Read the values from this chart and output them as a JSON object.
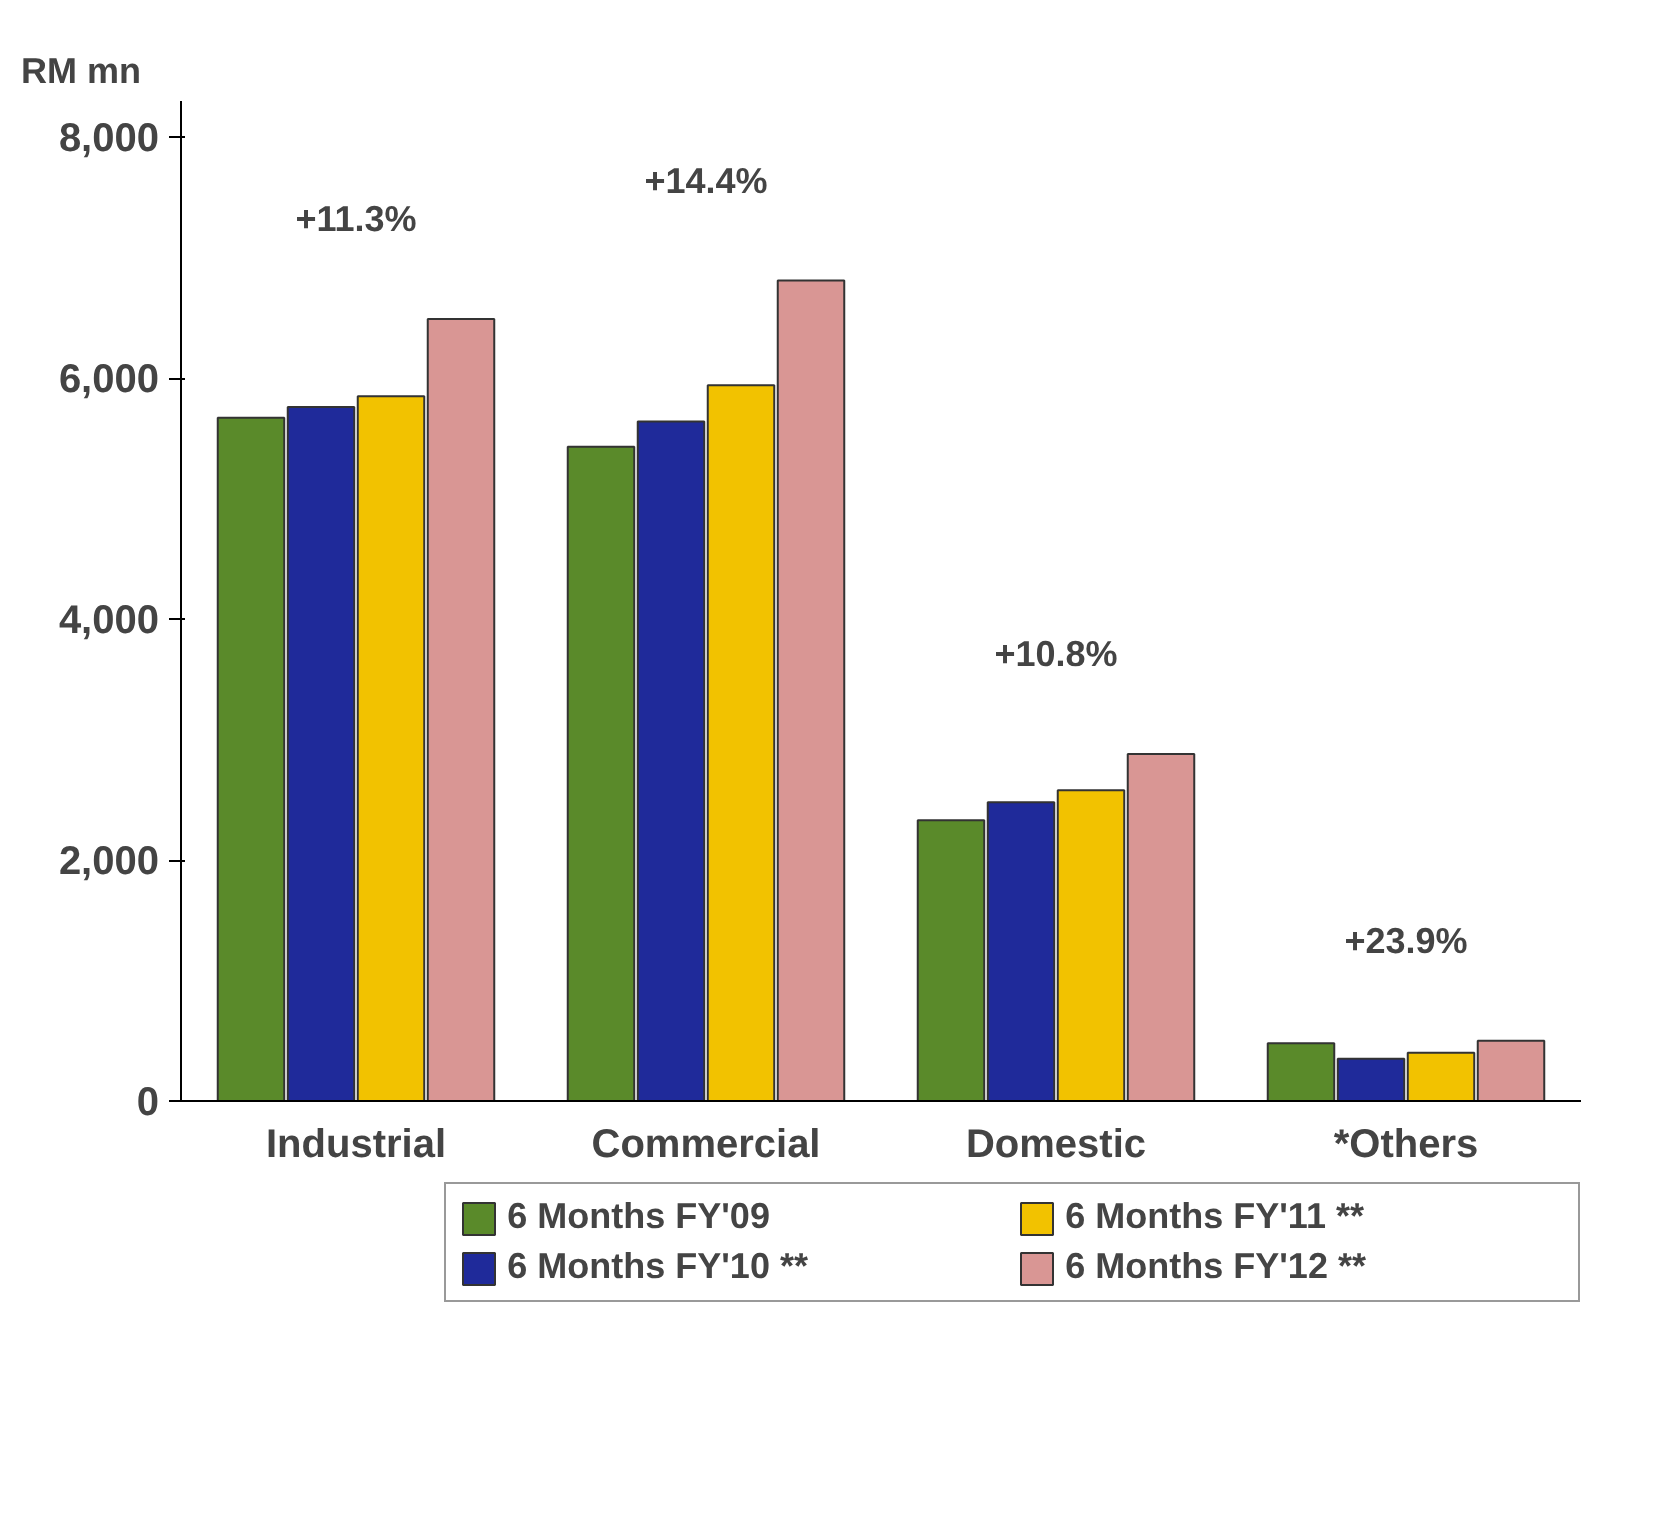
{
  "chart_data": {
    "type": "bar",
    "ylabel": "RM mn",
    "categories": [
      "Industrial",
      "Commercial",
      "Domestic",
      "*Others"
    ],
    "series": [
      {
        "name": "6 Months FY'09",
        "color": "#5a8a2a",
        "values": [
          5670,
          5430,
          2330,
          480
        ]
      },
      {
        "name": "6 Months FY'10 **",
        "color": "#1f2a9a",
        "values": [
          5760,
          5640,
          2480,
          350
        ]
      },
      {
        "name": "6 Months FY'11 **",
        "color": "#f2c200",
        "values": [
          5850,
          5940,
          2580,
          400
        ]
      },
      {
        "name": "6 Months FY'12 **",
        "color": "#d99694",
        "values": [
          6490,
          6810,
          2880,
          500
        ]
      }
    ],
    "ylim": [
      0,
      8300
    ],
    "yticks": [
      {
        "value": 0,
        "label": "0"
      },
      {
        "value": 2000,
        "label": "2,000"
      },
      {
        "value": 4000,
        "label": "4,000"
      },
      {
        "value": 6000,
        "label": "6,000"
      },
      {
        "value": 8000,
        "label": "8,000"
      }
    ],
    "annotations": [
      "+11.3%",
      "+14.4%",
      "+10.8%",
      "+23.9%"
    ],
    "legend": "bottom",
    "grid": false
  }
}
